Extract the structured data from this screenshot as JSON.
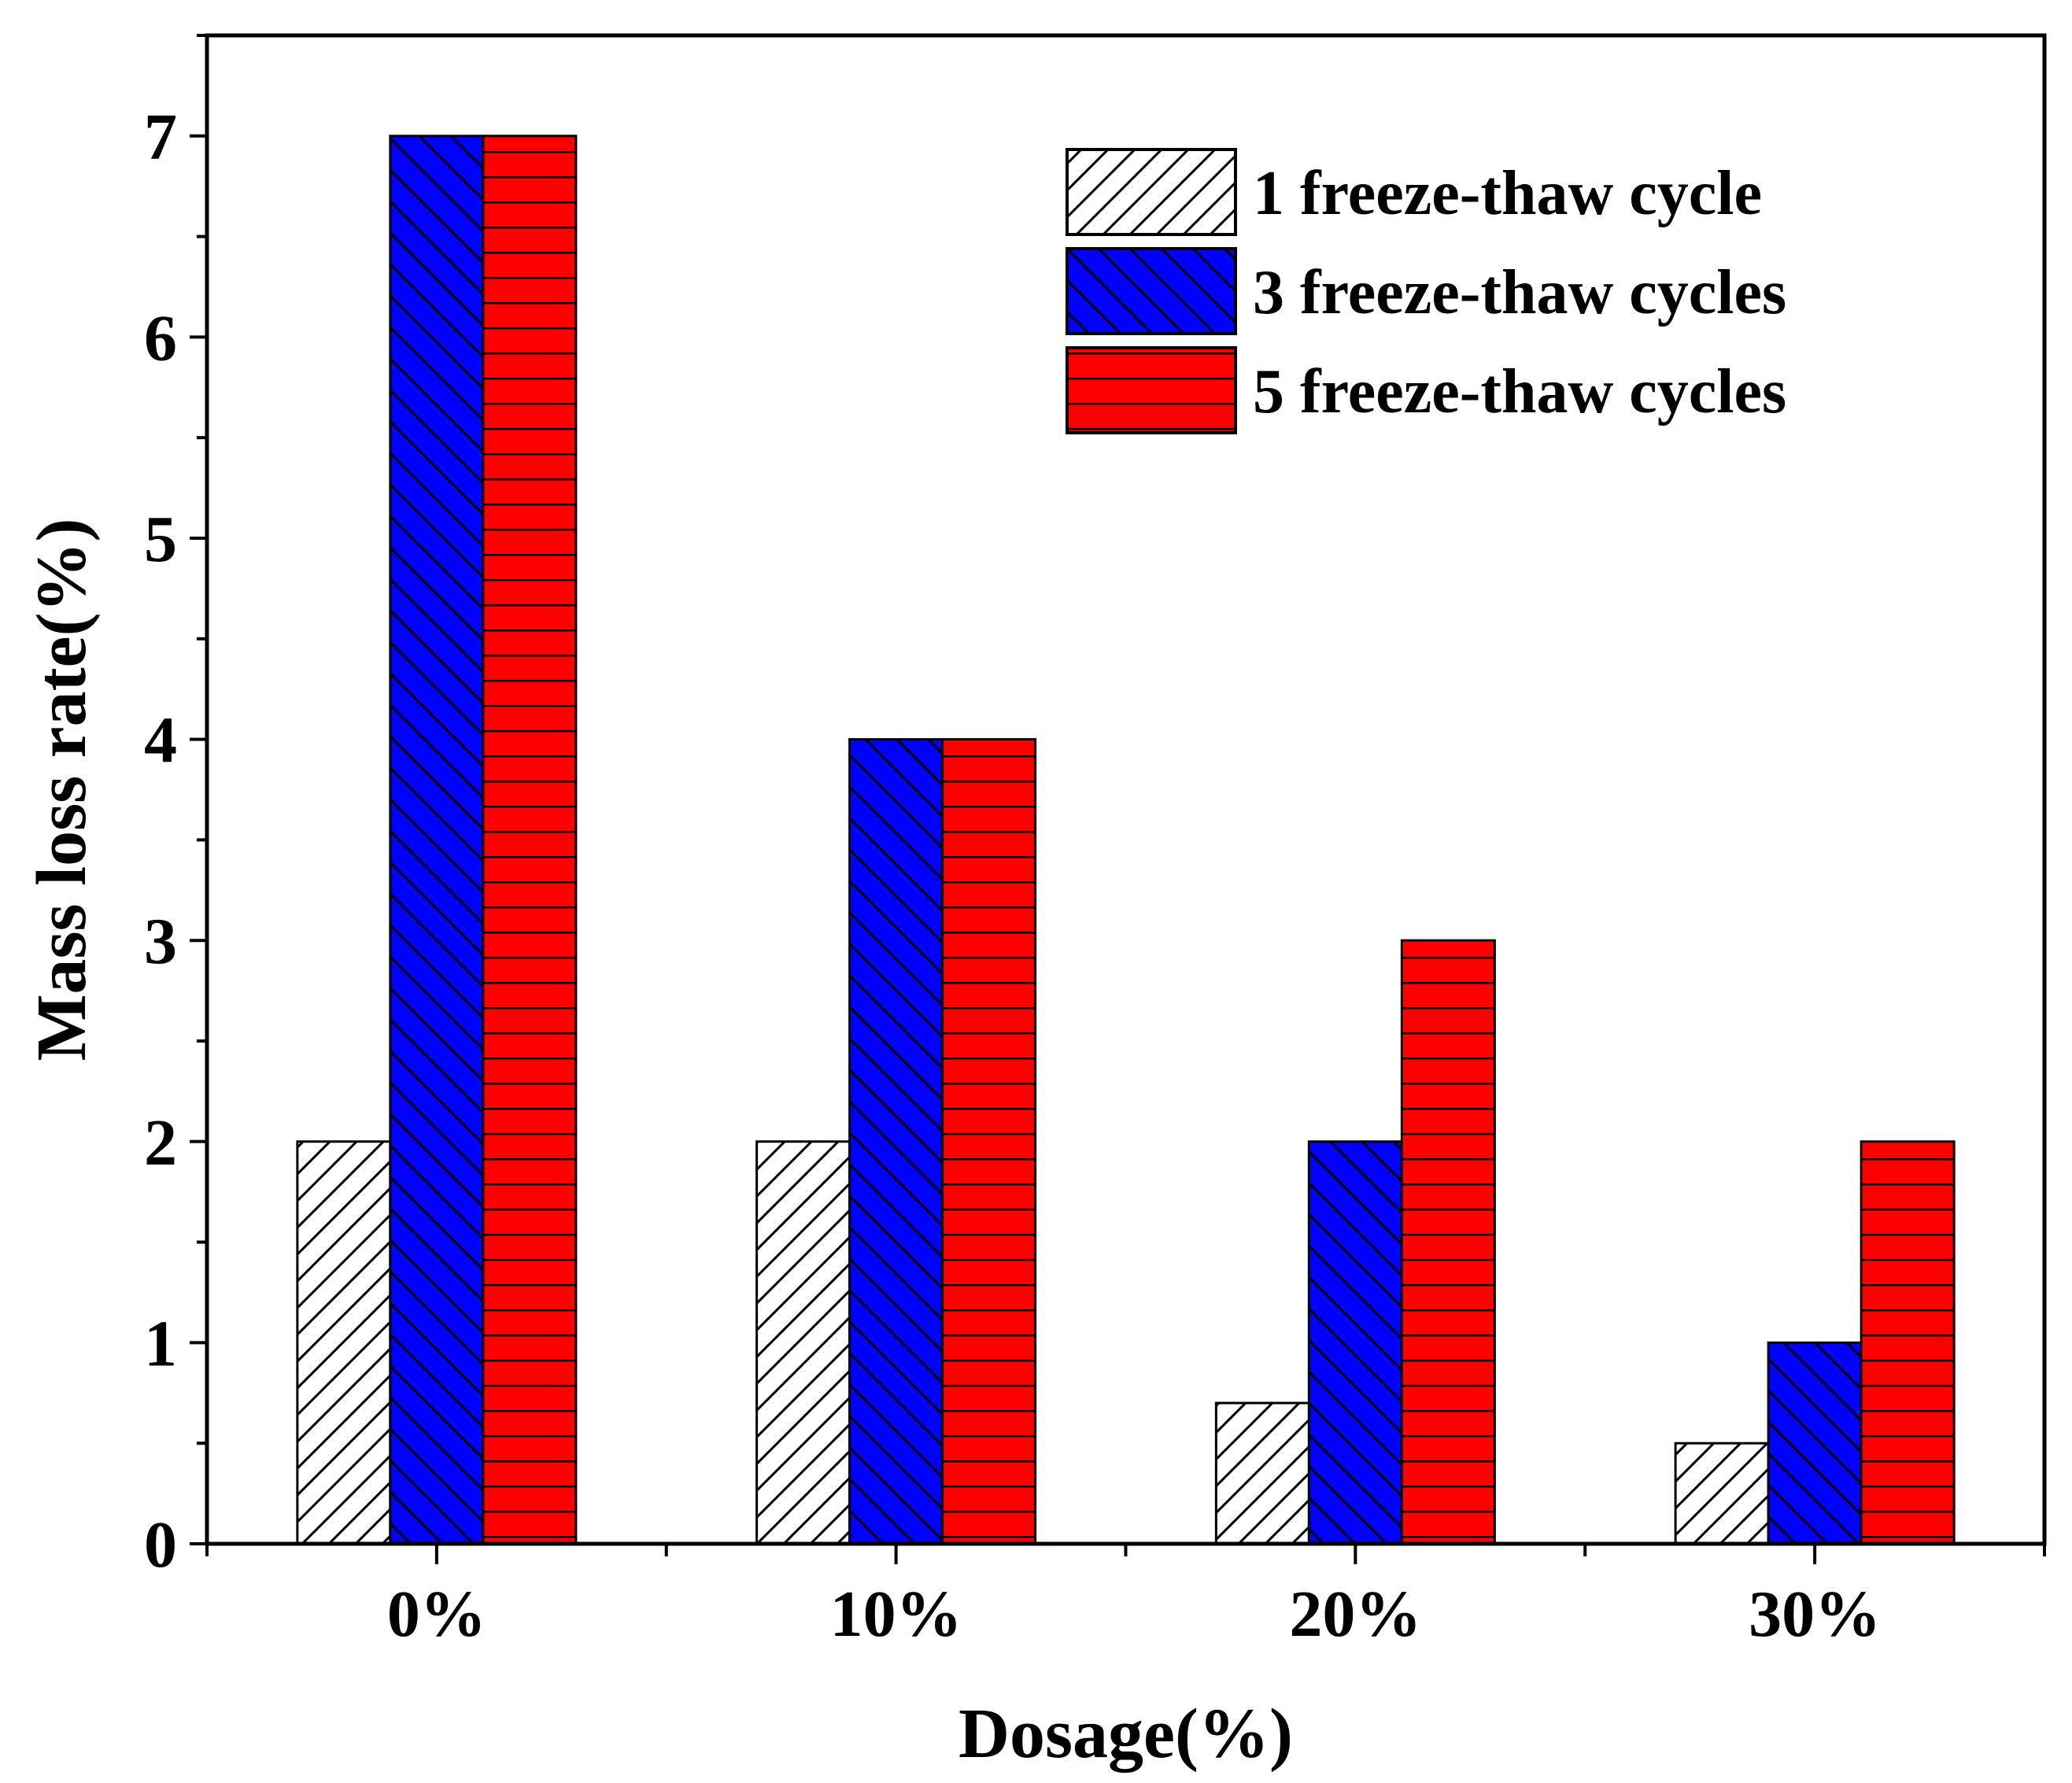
{
  "chart_data": {
    "type": "bar",
    "title": "",
    "xlabel": "Dosage(%)",
    "ylabel": "Mass loss rate(%)",
    "categories": [
      "0%",
      "10%",
      "20%",
      "30%"
    ],
    "ylim": [
      0,
      7.5
    ],
    "yticks": [
      0,
      1,
      2,
      3,
      4,
      5,
      6,
      7
    ],
    "ytick_labels": [
      "0",
      "1",
      "2",
      "3",
      "4",
      "5",
      "6",
      "7"
    ],
    "legend_position": "top-right",
    "grid": false,
    "series": [
      {
        "name": "1 freeze-thaw cycle",
        "values": [
          2,
          2,
          0.7,
          0.5
        ],
        "color": "#ffffff",
        "pattern": "diagonal-up"
      },
      {
        "name": "3 freeze-thaw cycles",
        "values": [
          7,
          4,
          2,
          1
        ],
        "color": "#0000ff",
        "pattern": "diagonal-down"
      },
      {
        "name": "5 freeze-thaw cycles",
        "values": [
          7,
          4,
          3,
          2
        ],
        "color": "#ff0000",
        "pattern": "horizontal"
      }
    ]
  }
}
